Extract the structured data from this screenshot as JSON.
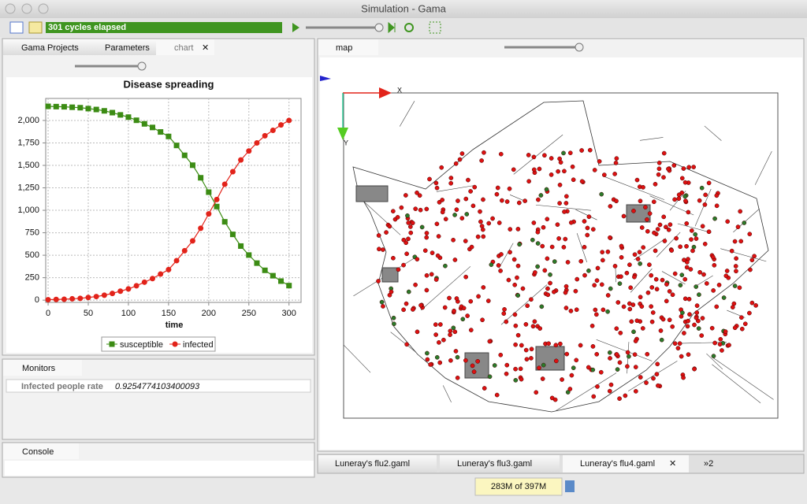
{
  "window": {
    "title": "Simulation - Gama"
  },
  "toolbar": {
    "status": "301 cycles elapsed"
  },
  "left_tabs": [
    "Gama Projects",
    "Parameters",
    "chart"
  ],
  "chart_data": {
    "type": "line",
    "title": "Disease spreading",
    "x_label": "time",
    "x": [
      0,
      10,
      20,
      30,
      40,
      50,
      60,
      70,
      80,
      90,
      100,
      110,
      120,
      130,
      140,
      150,
      160,
      170,
      180,
      190,
      200,
      210,
      220,
      230,
      240,
      250,
      260,
      270,
      280,
      290,
      300
    ],
    "series": [
      {
        "name": "susceptible",
        "color": "#3c8c14",
        "marker": "square",
        "values": [
          2157,
          2154,
          2152,
          2147,
          2142,
          2132,
          2122,
          2107,
          2087,
          2062,
          2037,
          2002,
          1962,
          1922,
          1872,
          1822,
          1722,
          1612,
          1502,
          1362,
          1202,
          1042,
          872,
          732,
          602,
          502,
          412,
          332,
          272,
          212,
          162
        ]
      },
      {
        "name": "infected",
        "color": "#e2231a",
        "marker": "circle",
        "values": [
          5,
          8,
          10,
          15,
          20,
          30,
          40,
          55,
          75,
          100,
          125,
          160,
          200,
          240,
          290,
          340,
          440,
          550,
          660,
          800,
          960,
          1120,
          1290,
          1430,
          1560,
          1660,
          1750,
          1830,
          1890,
          1950,
          2000
        ]
      }
    ],
    "xlim": [
      -3,
      315
    ],
    "ylim": [
      -25,
      2245
    ],
    "xticks": [
      0,
      50,
      100,
      150,
      200,
      250,
      300
    ],
    "yticks": [
      0,
      250,
      500,
      750,
      {
        "value": 1000,
        "label": "1,000"
      },
      {
        "value": 1250,
        "label": "1,250"
      },
      {
        "value": 1500,
        "label": "1,500"
      },
      {
        "value": 1750,
        "label": "1,750"
      },
      {
        "value": 2000,
        "label": "2,000"
      }
    ],
    "grid": true,
    "legend": "bottom"
  },
  "monitors": {
    "tab": "Monitors",
    "items": [
      {
        "name": "Infected people rate",
        "value": "0.9254774103400093"
      }
    ]
  },
  "console": {
    "tab": "Console"
  },
  "map": {
    "tab": "map",
    "axis_x": "X",
    "axis_y": "Y"
  },
  "editor_tabs": [
    "Luneray's flu2.gaml",
    "Luneray's flu3.gaml",
    "Luneray's flu4.gaml"
  ],
  "editor_overflow": "»2",
  "status": {
    "memory": "283M of 397M"
  }
}
